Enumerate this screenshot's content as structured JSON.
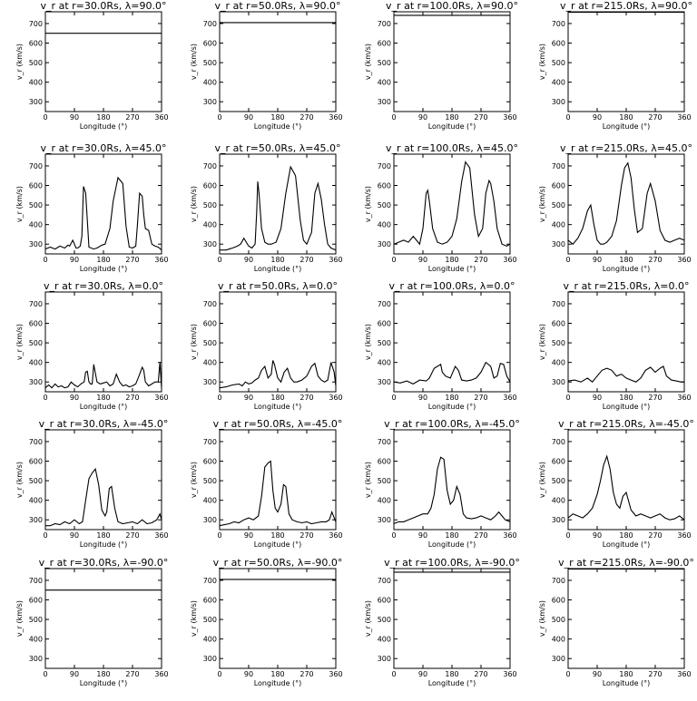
{
  "chart_data": [
    {
      "type": "line",
      "title": "v_r at r=30.0Rs, λ=90.0°",
      "xlabel": "Longitude (°)",
      "ylabel": "v_r (km/s)",
      "xlim": [
        0,
        360
      ],
      "ylim": [
        250,
        760
      ],
      "xticks": [
        "0",
        "90",
        "180",
        "270",
        "360"
      ],
      "yticks": [
        "300",
        "400",
        "500",
        "600",
        "700"
      ],
      "x": [
        0,
        360
      ],
      "y": [
        650,
        650
      ]
    },
    {
      "type": "line",
      "title": "v_r at r=50.0Rs, λ=90.0°",
      "xlabel": "Longitude (°)",
      "ylabel": "v_r (km/s)",
      "xlim": [
        0,
        360
      ],
      "ylim": [
        250,
        760
      ],
      "xticks": [
        "0",
        "90",
        "180",
        "270",
        "360"
      ],
      "yticks": [
        "300",
        "400",
        "500",
        "600",
        "700"
      ],
      "x": [
        0,
        360
      ],
      "y": [
        705,
        705
      ]
    },
    {
      "type": "line",
      "title": "v_r at r=100.0Rs, λ=90.0°",
      "xlabel": "Longitude (°)",
      "ylabel": "v_r (km/s)",
      "xlim": [
        0,
        360
      ],
      "ylim": [
        250,
        760
      ],
      "xticks": [
        "0",
        "90",
        "180",
        "270",
        "360"
      ],
      "yticks": [
        "300",
        "400",
        "500",
        "600",
        "700"
      ],
      "x": [
        0,
        360
      ],
      "y": [
        742,
        742
      ]
    },
    {
      "type": "line",
      "title": "v_r at r=215.0Rs, λ=90.0°",
      "xlabel": "Longitude (°)",
      "ylabel": "v_r (km/s)",
      "xlim": [
        0,
        360
      ],
      "ylim": [
        250,
        760
      ],
      "xticks": [
        "0",
        "90",
        "180",
        "270",
        "360"
      ],
      "yticks": [
        "300",
        "400",
        "500",
        "600",
        "700"
      ],
      "x": [
        0,
        360
      ],
      "y": [
        758,
        758
      ]
    },
    {
      "type": "line",
      "title": "v_r at r=30.0Rs, λ=45.0°",
      "xlabel": "Longitude (°)",
      "ylabel": "v_r (km/s)",
      "xlim": [
        0,
        360
      ],
      "ylim": [
        250,
        760
      ],
      "xticks": [
        "0",
        "90",
        "180",
        "270",
        "360"
      ],
      "yticks": [
        "300",
        "400",
        "500",
        "600",
        "700"
      ],
      "x": [
        0,
        15,
        30,
        45,
        60,
        70,
        75,
        85,
        95,
        100,
        108,
        113,
        118,
        125,
        135,
        150,
        160,
        175,
        185,
        200,
        210,
        225,
        240,
        250,
        260,
        270,
        280,
        285,
        292,
        300,
        305,
        310,
        320,
        330,
        340,
        350,
        360
      ],
      "y": [
        275,
        285,
        275,
        290,
        280,
        295,
        290,
        320,
        280,
        280,
        290,
        340,
        595,
        560,
        285,
        275,
        280,
        295,
        300,
        380,
        520,
        640,
        610,
        390,
        285,
        280,
        290,
        390,
        560,
        545,
        450,
        380,
        370,
        300,
        290,
        285,
        270
      ]
    },
    {
      "type": "line",
      "title": "v_r at r=50.0Rs, λ=45.0°",
      "xlabel": "Longitude (°)",
      "ylabel": "v_r (km/s)",
      "xlim": [
        0,
        360
      ],
      "ylim": [
        250,
        760
      ],
      "xticks": [
        "0",
        "90",
        "180",
        "270",
        "360"
      ],
      "yticks": [
        "300",
        "400",
        "500",
        "600",
        "700"
      ],
      "x": [
        0,
        20,
        40,
        55,
        65,
        75,
        90,
        100,
        110,
        115,
        118,
        122,
        130,
        140,
        150,
        160,
        175,
        190,
        205,
        220,
        235,
        250,
        260,
        270,
        285,
        295,
        305,
        315,
        325,
        335,
        345,
        360
      ],
      "y": [
        270,
        270,
        280,
        290,
        300,
        330,
        290,
        280,
        300,
        470,
        620,
        560,
        380,
        310,
        300,
        300,
        310,
        380,
        560,
        695,
        650,
        420,
        320,
        300,
        360,
        560,
        610,
        530,
        400,
        300,
        280,
        270
      ]
    },
    {
      "type": "line",
      "title": "v_r at r=100.0Rs, λ=45.0°",
      "xlabel": "Longitude (°)",
      "ylabel": "v_r (km/s)",
      "xlim": [
        0,
        360
      ],
      "ylim": [
        250,
        760
      ],
      "xticks": [
        "0",
        "90",
        "180",
        "270",
        "360"
      ],
      "yticks": [
        "300",
        "400",
        "500",
        "600",
        "700"
      ],
      "x": [
        0,
        15,
        30,
        45,
        60,
        70,
        80,
        90,
        100,
        105,
        110,
        120,
        135,
        150,
        165,
        180,
        195,
        210,
        222,
        235,
        250,
        262,
        275,
        285,
        295,
        300,
        310,
        320,
        335,
        350,
        360
      ],
      "y": [
        300,
        310,
        320,
        310,
        340,
        320,
        300,
        380,
        560,
        575,
        520,
        380,
        310,
        300,
        310,
        340,
        430,
        620,
        720,
        690,
        450,
        340,
        380,
        560,
        625,
        610,
        520,
        380,
        300,
        290,
        300
      ]
    },
    {
      "type": "line",
      "title": "v_r at r=215.0Rs, λ=45.0°",
      "xlabel": "Longitude (°)",
      "ylabel": "v_r (km/s)",
      "xlim": [
        0,
        360
      ],
      "ylim": [
        250,
        760
      ],
      "xticks": [
        "0",
        "90",
        "180",
        "270",
        "360"
      ],
      "yticks": [
        "300",
        "400",
        "500",
        "600",
        "700"
      ],
      "x": [
        0,
        15,
        30,
        45,
        60,
        70,
        80,
        90,
        100,
        110,
        120,
        135,
        150,
        165,
        175,
        185,
        195,
        205,
        215,
        230,
        245,
        255,
        270,
        285,
        300,
        315,
        330,
        345,
        360
      ],
      "y": [
        320,
        300,
        330,
        380,
        470,
        500,
        400,
        320,
        300,
        300,
        310,
        340,
        420,
        600,
        690,
        715,
        640,
        480,
        360,
        380,
        560,
        610,
        520,
        370,
        320,
        310,
        320,
        330,
        320
      ]
    },
    {
      "type": "line",
      "title": "v_r at r=30.0Rs, λ=0.0°",
      "xlabel": "Longitude (°)",
      "ylabel": "v_r (km/s)",
      "xlim": [
        0,
        360
      ],
      "ylim": [
        250,
        760
      ],
      "xticks": [
        "0",
        "90",
        "180",
        "270",
        "360"
      ],
      "yticks": [
        "300",
        "400",
        "500",
        "600",
        "700"
      ],
      "x": [
        0,
        10,
        20,
        30,
        40,
        50,
        60,
        70,
        80,
        90,
        100,
        110,
        120,
        125,
        130,
        135,
        140,
        145,
        150,
        160,
        170,
        180,
        190,
        200,
        210,
        220,
        230,
        240,
        250,
        260,
        270,
        280,
        290,
        300,
        305,
        310,
        320,
        330,
        340,
        350,
        355,
        360
      ],
      "y": [
        270,
        285,
        270,
        290,
        275,
        280,
        270,
        275,
        300,
        285,
        275,
        290,
        300,
        350,
        355,
        300,
        290,
        290,
        390,
        300,
        290,
        295,
        300,
        280,
        290,
        340,
        300,
        280,
        285,
        275,
        280,
        290,
        330,
        375,
        360,
        300,
        280,
        290,
        300,
        300,
        400,
        270
      ]
    },
    {
      "type": "line",
      "title": "v_r at r=50.0Rs, λ=0.0°",
      "xlabel": "Longitude (°)",
      "ylabel": "v_r (km/s)",
      "xlim": [
        0,
        360
      ],
      "ylim": [
        250,
        760
      ],
      "xticks": [
        "0",
        "90",
        "180",
        "270",
        "360"
      ],
      "yticks": [
        "300",
        "400",
        "500",
        "600",
        "700"
      ],
      "x": [
        0,
        20,
        40,
        60,
        70,
        80,
        90,
        100,
        110,
        120,
        130,
        140,
        150,
        160,
        165,
        170,
        180,
        190,
        200,
        210,
        220,
        230,
        240,
        255,
        270,
        285,
        295,
        305,
        315,
        325,
        335,
        345,
        355,
        360
      ],
      "y": [
        270,
        275,
        285,
        290,
        280,
        300,
        290,
        295,
        310,
        320,
        360,
        380,
        320,
        340,
        410,
        390,
        320,
        300,
        350,
        370,
        320,
        300,
        300,
        310,
        330,
        380,
        395,
        330,
        310,
        300,
        310,
        400,
        350,
        280
      ]
    },
    {
      "type": "line",
      "title": "v_r at r=100.0Rs, λ=0.0°",
      "xlabel": "Longitude (°)",
      "ylabel": "v_r (km/s)",
      "xlim": [
        0,
        360
      ],
      "ylim": [
        250,
        760
      ],
      "xticks": [
        "0",
        "90",
        "180",
        "270",
        "360"
      ],
      "yticks": [
        "300",
        "400",
        "500",
        "600",
        "700"
      ],
      "x": [
        0,
        20,
        40,
        60,
        80,
        100,
        110,
        125,
        135,
        145,
        150,
        160,
        175,
        190,
        200,
        210,
        225,
        240,
        255,
        270,
        285,
        300,
        310,
        320,
        330,
        340,
        350,
        360
      ],
      "y": [
        300,
        295,
        305,
        290,
        310,
        305,
        320,
        370,
        380,
        390,
        350,
        330,
        320,
        380,
        360,
        310,
        305,
        310,
        320,
        350,
        400,
        380,
        320,
        330,
        395,
        390,
        330,
        300
      ]
    },
    {
      "type": "line",
      "title": "v_r at r=215.0Rs, λ=0.0°",
      "xlabel": "Longitude (°)",
      "ylabel": "v_r (km/s)",
      "xlim": [
        0,
        360
      ],
      "ylim": [
        250,
        760
      ],
      "xticks": [
        "0",
        "90",
        "180",
        "270",
        "360"
      ],
      "yticks": [
        "300",
        "400",
        "500",
        "600",
        "700"
      ],
      "x": [
        0,
        20,
        40,
        60,
        75,
        90,
        105,
        120,
        135,
        150,
        165,
        180,
        195,
        210,
        225,
        240,
        255,
        270,
        285,
        295,
        305,
        320,
        335,
        350,
        360
      ],
      "y": [
        305,
        310,
        300,
        320,
        300,
        330,
        360,
        370,
        360,
        330,
        340,
        320,
        310,
        300,
        320,
        360,
        375,
        350,
        370,
        380,
        330,
        310,
        305,
        300,
        300
      ]
    },
    {
      "type": "line",
      "title": "v_r at r=30.0Rs, λ=-45.0°",
      "xlabel": "Longitude (°)",
      "ylabel": "v_r (km/s)",
      "xlim": [
        0,
        360
      ],
      "ylim": [
        250,
        760
      ],
      "xticks": [
        "0",
        "90",
        "180",
        "270",
        "360"
      ],
      "yticks": [
        "300",
        "400",
        "500",
        "600",
        "700"
      ],
      "x": [
        0,
        15,
        30,
        45,
        60,
        75,
        90,
        105,
        115,
        125,
        135,
        145,
        155,
        165,
        175,
        185,
        190,
        198,
        205,
        215,
        225,
        240,
        255,
        270,
        285,
        300,
        315,
        330,
        345,
        355,
        360
      ],
      "y": [
        270,
        270,
        280,
        275,
        290,
        280,
        300,
        280,
        290,
        400,
        510,
        540,
        560,
        480,
        350,
        320,
        340,
        460,
        470,
        360,
        290,
        280,
        285,
        290,
        280,
        300,
        280,
        285,
        300,
        330,
        300
      ]
    },
    {
      "type": "line",
      "title": "v_r at r=50.0Rs, λ=-45.0°",
      "xlabel": "Longitude (°)",
      "ylabel": "v_r (km/s)",
      "xlim": [
        0,
        360
      ],
      "ylim": [
        250,
        760
      ],
      "xticks": [
        "0",
        "90",
        "180",
        "270",
        "360"
      ],
      "yticks": [
        "300",
        "400",
        "500",
        "600",
        "700"
      ],
      "x": [
        0,
        15,
        30,
        45,
        60,
        75,
        90,
        105,
        120,
        130,
        140,
        150,
        158,
        165,
        172,
        180,
        190,
        198,
        205,
        215,
        225,
        240,
        255,
        270,
        285,
        300,
        315,
        330,
        340,
        348,
        360
      ],
      "y": [
        270,
        275,
        280,
        290,
        285,
        300,
        310,
        300,
        320,
        420,
        570,
        590,
        600,
        450,
        360,
        340,
        380,
        480,
        470,
        330,
        300,
        290,
        285,
        290,
        280,
        285,
        290,
        290,
        300,
        340,
        290
      ]
    },
    {
      "type": "line",
      "title": "v_r at r=100.0Rs, λ=-45.0°",
      "xlabel": "Longitude (°)",
      "ylabel": "v_r (km/s)",
      "xlim": [
        0,
        360
      ],
      "ylim": [
        250,
        760
      ],
      "xticks": [
        "0",
        "90",
        "180",
        "270",
        "360"
      ],
      "yticks": [
        "300",
        "400",
        "500",
        "600",
        "700"
      ],
      "x": [
        0,
        15,
        30,
        45,
        60,
        75,
        90,
        105,
        115,
        125,
        135,
        145,
        155,
        165,
        175,
        185,
        195,
        205,
        215,
        225,
        240,
        255,
        270,
        285,
        300,
        315,
        325,
        335,
        345,
        360
      ],
      "y": [
        280,
        290,
        290,
        300,
        310,
        320,
        330,
        330,
        360,
        430,
        560,
        620,
        610,
        450,
        380,
        400,
        470,
        430,
        330,
        310,
        305,
        310,
        320,
        310,
        300,
        320,
        340,
        320,
        300,
        290
      ]
    },
    {
      "type": "line",
      "title": "v_r at r=215.0Rs, λ=-45.0°",
      "xlabel": "Longitude (°)",
      "ylabel": "v_r (km/s)",
      "xlim": [
        0,
        360
      ],
      "ylim": [
        250,
        760
      ],
      "xticks": [
        "0",
        "90",
        "180",
        "270",
        "360"
      ],
      "yticks": [
        "300",
        "400",
        "500",
        "600",
        "700"
      ],
      "x": [
        0,
        15,
        30,
        45,
        60,
        75,
        90,
        100,
        110,
        120,
        130,
        140,
        150,
        160,
        170,
        180,
        195,
        210,
        225,
        240,
        255,
        270,
        285,
        300,
        315,
        330,
        345,
        360
      ],
      "y": [
        310,
        330,
        320,
        310,
        330,
        360,
        430,
        500,
        580,
        625,
        560,
        440,
        380,
        360,
        420,
        440,
        350,
        320,
        330,
        320,
        310,
        320,
        330,
        310,
        300,
        305,
        320,
        300
      ]
    },
    {
      "type": "line",
      "title": "v_r at r=30.0Rs, λ=-90.0°",
      "xlabel": "Longitude (°)",
      "ylabel": "v_r (km/s)",
      "xlim": [
        0,
        360
      ],
      "ylim": [
        250,
        760
      ],
      "xticks": [
        "0",
        "90",
        "180",
        "270",
        "360"
      ],
      "yticks": [
        "300",
        "400",
        "500",
        "600",
        "700"
      ],
      "x": [
        0,
        360
      ],
      "y": [
        650,
        650
      ]
    },
    {
      "type": "line",
      "title": "v_r at r=50.0Rs, λ=-90.0°",
      "xlabel": "Longitude (°)",
      "ylabel": "v_r (km/s)",
      "xlim": [
        0,
        360
      ],
      "ylim": [
        250,
        760
      ],
      "xticks": [
        "0",
        "90",
        "180",
        "270",
        "360"
      ],
      "yticks": [
        "300",
        "400",
        "500",
        "600",
        "700"
      ],
      "x": [
        0,
        360
      ],
      "y": [
        705,
        705
      ]
    },
    {
      "type": "line",
      "title": "v_r at r=100.0Rs, λ=-90.0°",
      "xlabel": "Longitude (°)",
      "ylabel": "v_r (km/s)",
      "xlim": [
        0,
        360
      ],
      "ylim": [
        250,
        760
      ],
      "xticks": [
        "0",
        "90",
        "180",
        "270",
        "360"
      ],
      "yticks": [
        "300",
        "400",
        "500",
        "600",
        "700"
      ],
      "x": [
        0,
        360
      ],
      "y": [
        742,
        742
      ]
    },
    {
      "type": "line",
      "title": "v_r at r=215.0Rs, λ=-90.0°",
      "xlabel": "Longitude (°)",
      "ylabel": "v_r (km/s)",
      "xlim": [
        0,
        360
      ],
      "ylim": [
        250,
        760
      ],
      "xticks": [
        "0",
        "90",
        "180",
        "270",
        "360"
      ],
      "yticks": [
        "300",
        "400",
        "500",
        "600",
        "700"
      ],
      "x": [
        0,
        360
      ],
      "y": [
        758,
        758
      ]
    }
  ]
}
